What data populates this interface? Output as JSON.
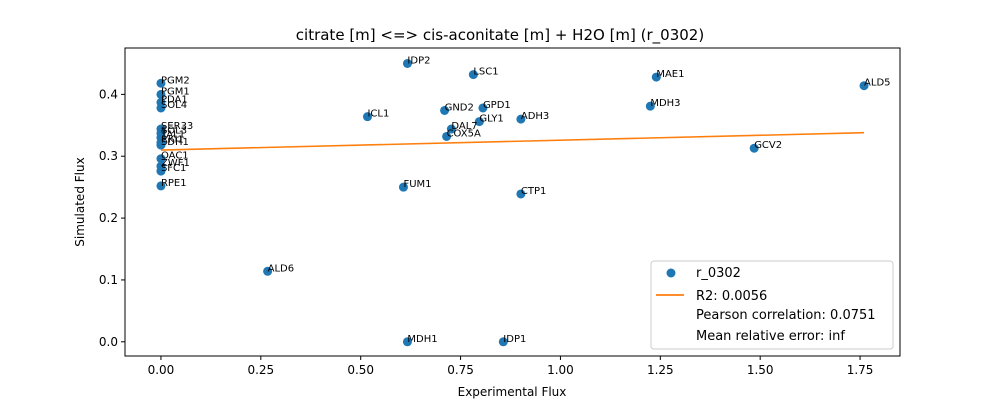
{
  "chart_data": {
    "type": "scatter",
    "title": "citrate [m] <=> cis-aconitate [m] + H2O [m] (r_0302)",
    "xlabel": "Experimental Flux",
    "ylabel": "Simulated Flux",
    "xlim": [
      -0.09,
      1.85
    ],
    "ylim": [
      -0.023,
      0.475
    ],
    "xticks": [
      0.0,
      0.25,
      0.5,
      0.75,
      1.0,
      1.25,
      1.5,
      1.75
    ],
    "xtick_labels": [
      "0.00",
      "0.25",
      "0.50",
      "0.75",
      "1.00",
      "1.25",
      "1.50",
      "1.75"
    ],
    "yticks": [
      0.0,
      0.1,
      0.2,
      0.3,
      0.4
    ],
    "ytick_labels": [
      "0.0",
      "0.1",
      "0.2",
      "0.3",
      "0.4"
    ],
    "grid": false,
    "legend_position": "bottom-right",
    "colors": {
      "points": "#1f77b4",
      "fit": "#ff7f0e"
    },
    "series": [
      {
        "name": "r_0302",
        "kind": "scatter",
        "points": [
          {
            "label": "PGM2",
            "x": 0.0,
            "y": 0.418
          },
          {
            "label": "PGM1",
            "x": 0.0,
            "y": 0.4
          },
          {
            "label": "PDA1",
            "x": 0.0,
            "y": 0.387
          },
          {
            "label": "SOL4",
            "x": 0.0,
            "y": 0.378
          },
          {
            "label": "SER33",
            "x": 0.0,
            "y": 0.344
          },
          {
            "label": "SOL3",
            "x": 0.0,
            "y": 0.337
          },
          {
            "label": "TAL1",
            "x": 0.0,
            "y": 0.33
          },
          {
            "label": "RKI1",
            "x": 0.0,
            "y": 0.322
          },
          {
            "label": "SDH1",
            "x": 0.0,
            "y": 0.318
          },
          {
            "label": "OAC1",
            "x": 0.0,
            "y": 0.296
          },
          {
            "label": "ZWF1",
            "x": 0.0,
            "y": 0.284
          },
          {
            "label": "SFC1",
            "x": 0.0,
            "y": 0.276
          },
          {
            "label": "RPE1",
            "x": 0.0,
            "y": 0.252
          },
          {
            "label": "ALD6",
            "x": 0.267,
            "y": 0.114
          },
          {
            "label": "ICL1",
            "x": 0.517,
            "y": 0.364
          },
          {
            "label": "FUM1",
            "x": 0.607,
            "y": 0.25
          },
          {
            "label": "IDP2",
            "x": 0.617,
            "y": 0.45
          },
          {
            "label": "MDH1",
            "x": 0.617,
            "y": 0.0
          },
          {
            "label": "GND2",
            "x": 0.71,
            "y": 0.374
          },
          {
            "label": "COX5A",
            "x": 0.715,
            "y": 0.332
          },
          {
            "label": "DAL7",
            "x": 0.727,
            "y": 0.344
          },
          {
            "label": "LSC1",
            "x": 0.782,
            "y": 0.432
          },
          {
            "label": "GLY1",
            "x": 0.797,
            "y": 0.356
          },
          {
            "label": "GPD1",
            "x": 0.806,
            "y": 0.378
          },
          {
            "label": "IDP1",
            "x": 0.857,
            "y": 0.0
          },
          {
            "label": "ADH3",
            "x": 0.901,
            "y": 0.36
          },
          {
            "label": "CTP1",
            "x": 0.901,
            "y": 0.239
          },
          {
            "label": "MDH3",
            "x": 1.225,
            "y": 0.381
          },
          {
            "label": "MAE1",
            "x": 1.24,
            "y": 0.428
          },
          {
            "label": "GCV2",
            "x": 1.485,
            "y": 0.313
          },
          {
            "label": "ALD5",
            "x": 1.76,
            "y": 0.414
          }
        ]
      },
      {
        "name": "R2: 0.0056",
        "kind": "line",
        "x": [
          0.0,
          1.76
        ],
        "y": [
          0.31,
          0.338
        ]
      }
    ],
    "legend_entries": [
      {
        "text": "r_0302",
        "marker": "point"
      },
      {
        "text": "R2: 0.0056",
        "marker": "line"
      },
      {
        "text": "Pearson correlation: 0.0751",
        "marker": "none"
      },
      {
        "text": "Mean relative error: inf",
        "marker": "none"
      }
    ]
  }
}
